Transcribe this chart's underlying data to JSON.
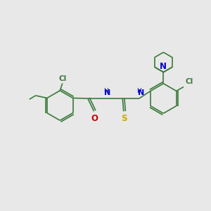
{
  "background_color": "#e8e8e8",
  "bond_color": "#3a7a3a",
  "atom_colors": {
    "Cl": "#3a7a3a",
    "O": "#cc0000",
    "S": "#ccaa00",
    "NH": "#0000cc",
    "N": "#0000cc",
    "C": "#3a7a3a"
  },
  "fig_width": 3.0,
  "fig_height": 3.0,
  "dpi": 100,
  "lw": 1.2,
  "ring_r": 0.72,
  "pip_r": 0.48
}
